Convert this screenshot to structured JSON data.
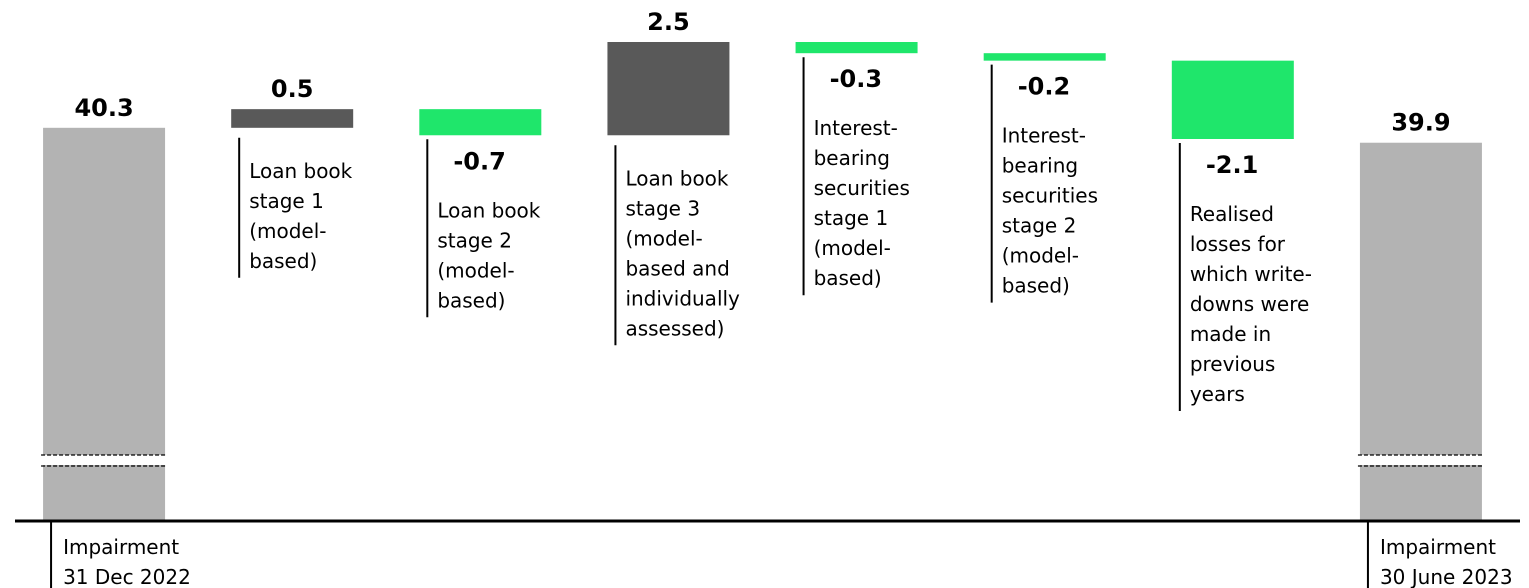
{
  "chart_data": {
    "type": "waterfall",
    "categories": [
      [
        "Impairment",
        "31 Dec 2022"
      ],
      [
        "Loan book",
        "stage 1",
        "(model-",
        "based)"
      ],
      [
        "Loan book",
        "stage 2",
        "(model-",
        "based)"
      ],
      [
        "Loan book",
        "stage 3",
        "(model-",
        "based and",
        "individually",
        "assessed)"
      ],
      [
        "Interest-",
        "bearing",
        "securities",
        "stage 1",
        "(model-",
        "based)"
      ],
      [
        "Interest-",
        "bearing",
        "securities",
        "stage 2",
        "(model-",
        "based)"
      ],
      [
        "Realised",
        "losses for",
        "which write-",
        "downs were",
        "made in",
        "previous",
        "years"
      ],
      [
        "Impairment",
        "30 June 2023"
      ]
    ],
    "values": [
      40.3,
      0.5,
      -0.7,
      2.5,
      -0.3,
      -0.2,
      -2.1,
      39.9
    ],
    "totals": [
      true,
      false,
      false,
      false,
      false,
      false,
      false,
      true
    ],
    "colors": {
      "total": "#b3b3b3",
      "increase": "#595959",
      "decrease": "#1fe66b"
    },
    "axis_break": true
  }
}
